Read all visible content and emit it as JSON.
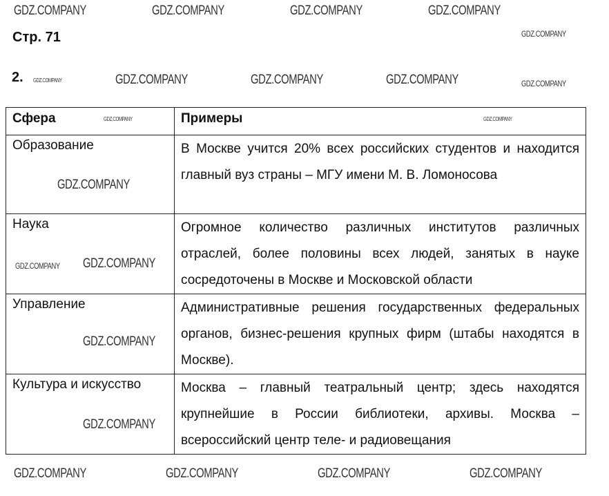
{
  "page_title": "Стр. 71",
  "task_number": "2.",
  "watermark": "GDZ.COMPANY",
  "table": {
    "headers": [
      "Сфера",
      "Примеры"
    ],
    "rows": [
      {
        "sphere": "Образование",
        "examples": "В Москве учится 20% всех российских студентов и находится главный вуз страны – МГУ имени М. В. Ломоносова"
      },
      {
        "sphere": "Наука",
        "examples": "Огромное количество различных институтов различных отраслей, более половины всех людей, занятых в науке сосредоточены в Москве и Московской области"
      },
      {
        "sphere": "Управление",
        "examples": "Административные решения государственных федеральных органов, бизнес-решения крупных фирм (штабы находятся в Москве)."
      },
      {
        "sphere": "Культура и искусство",
        "examples": "Москва – главный театральный центр; здесь находятся крупнейшие в России библиотеки, архивы. Москва – всероссийский центр теле- и радиовещания"
      }
    ]
  }
}
